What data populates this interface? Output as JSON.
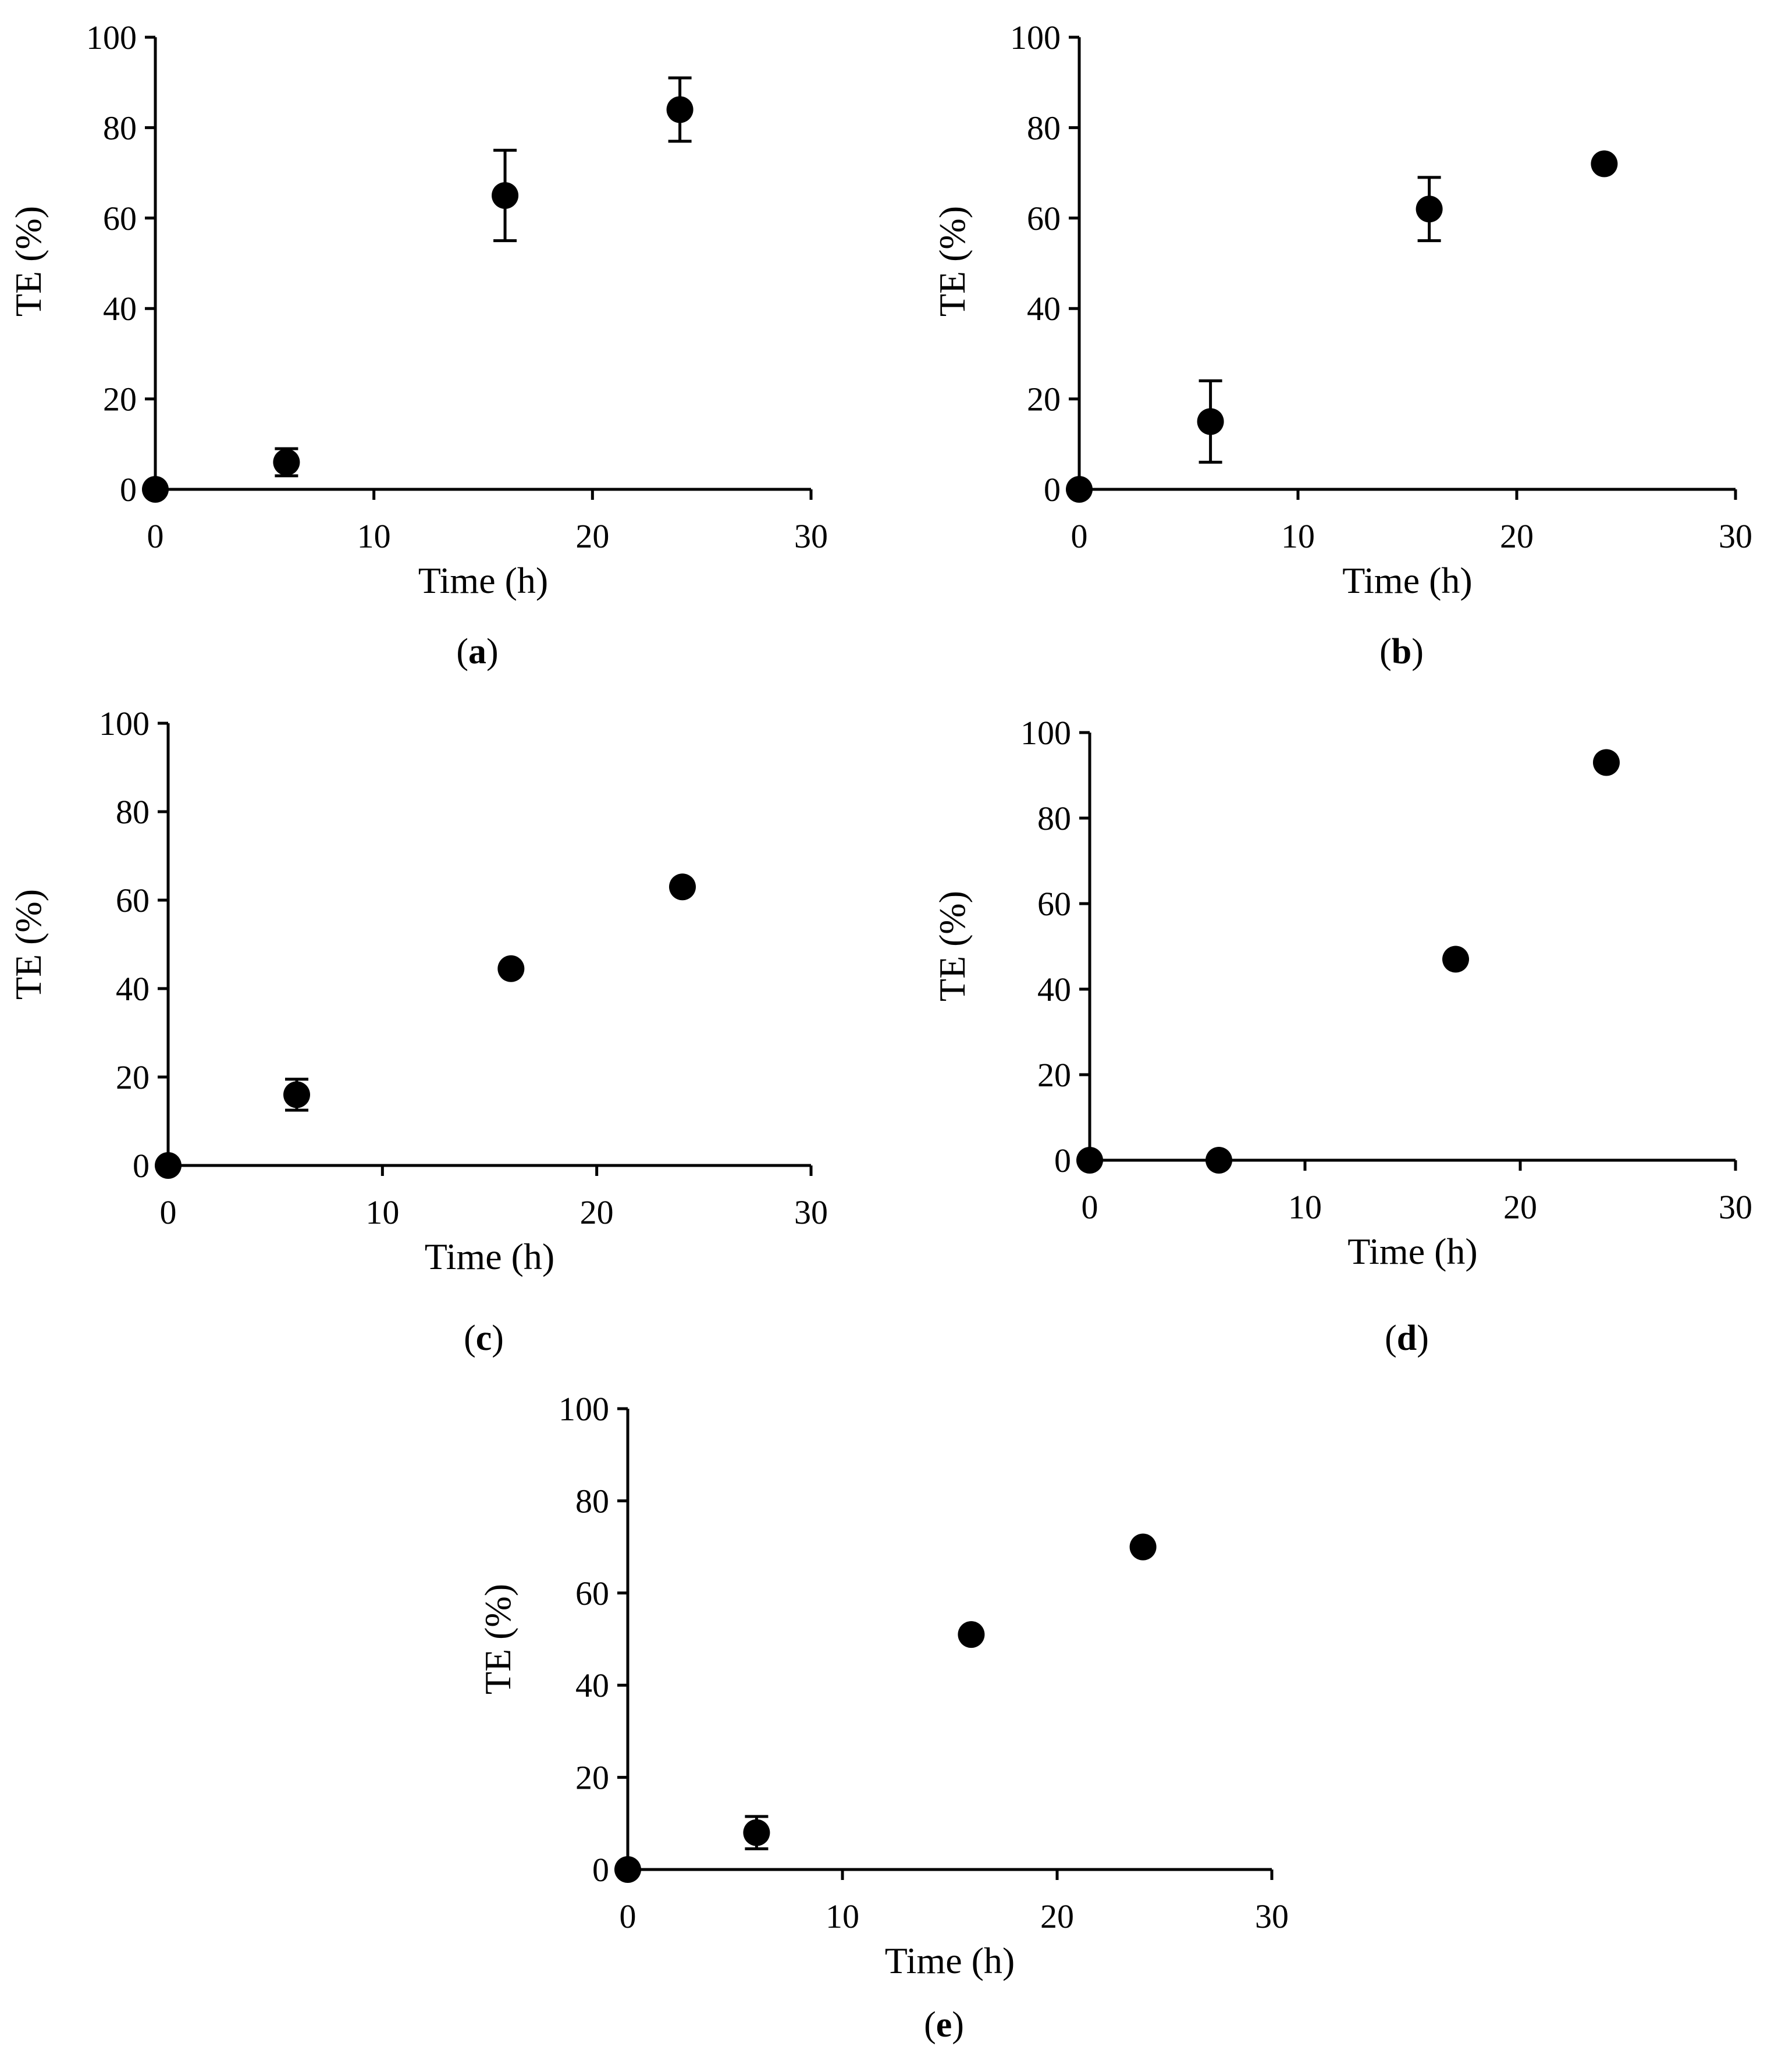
{
  "colors": {
    "marker": "#000000",
    "axis": "#000000",
    "errorbar": "#000000"
  },
  "chart_data": [
    {
      "type": "scatter",
      "panel_label": "a",
      "xlabel": "Time (h)",
      "ylabel": "TE (%)",
      "xlim": [
        0,
        30
      ],
      "ylim": [
        0,
        100
      ],
      "x_ticks": [
        "0",
        "10",
        "20",
        "30"
      ],
      "y_ticks": [
        "0",
        "20",
        "40",
        "60",
        "80",
        "100"
      ],
      "grid": false,
      "points": [
        {
          "x": 0,
          "y": 0,
          "err": 0
        },
        {
          "x": 6,
          "y": 6,
          "err": 3
        },
        {
          "x": 16,
          "y": 65,
          "err": 10
        },
        {
          "x": 24,
          "y": 84,
          "err": 7
        }
      ]
    },
    {
      "type": "scatter",
      "panel_label": "b",
      "xlabel": "Time (h)",
      "ylabel": "TE (%)",
      "xlim": [
        0,
        30
      ],
      "ylim": [
        0,
        100
      ],
      "x_ticks": [
        "0",
        "10",
        "20",
        "30"
      ],
      "y_ticks": [
        "0",
        "20",
        "40",
        "60",
        "80",
        "100"
      ],
      "grid": false,
      "points": [
        {
          "x": 0,
          "y": 0,
          "err": 0
        },
        {
          "x": 6,
          "y": 15,
          "err": 9
        },
        {
          "x": 16,
          "y": 62,
          "err": 7
        },
        {
          "x": 24,
          "y": 72,
          "err": 1
        }
      ]
    },
    {
      "type": "scatter",
      "panel_label": "c",
      "xlabel": "Time (h)",
      "ylabel": "TE (%)",
      "xlim": [
        0,
        30
      ],
      "ylim": [
        0,
        100
      ],
      "x_ticks": [
        "0",
        "10",
        "20",
        "30"
      ],
      "y_ticks": [
        "0",
        "20",
        "40",
        "60",
        "80",
        "100"
      ],
      "grid": false,
      "points": [
        {
          "x": 0,
          "y": 0,
          "err": 0
        },
        {
          "x": 6,
          "y": 16,
          "err": 3.5
        },
        {
          "x": 16,
          "y": 44.5,
          "err": 1
        },
        {
          "x": 24,
          "y": 63,
          "err": 1
        }
      ]
    },
    {
      "type": "scatter",
      "panel_label": "d",
      "xlabel": "Time (h)",
      "ylabel": "TE (%)",
      "xlim": [
        0,
        30
      ],
      "ylim": [
        0,
        100
      ],
      "x_ticks": [
        "0",
        "10",
        "20",
        "30"
      ],
      "y_ticks": [
        "0",
        "20",
        "40",
        "60",
        "80",
        "100"
      ],
      "grid": false,
      "points": [
        {
          "x": 0,
          "y": 0,
          "err": 0
        },
        {
          "x": 6,
          "y": 0,
          "err": 0
        },
        {
          "x": 17,
          "y": 47,
          "err": 0.5
        },
        {
          "x": 24,
          "y": 93,
          "err": 0.5
        }
      ]
    },
    {
      "type": "scatter",
      "panel_label": "e",
      "xlabel": "Time (h)",
      "ylabel": "TE (%)",
      "xlim": [
        0,
        30
      ],
      "ylim": [
        0,
        100
      ],
      "x_ticks": [
        "0",
        "10",
        "20",
        "30"
      ],
      "y_ticks": [
        "0",
        "20",
        "40",
        "60",
        "80",
        "100"
      ],
      "grid": false,
      "points": [
        {
          "x": 0,
          "y": 0,
          "err": 0
        },
        {
          "x": 6,
          "y": 8,
          "err": 3.5
        },
        {
          "x": 16,
          "y": 51,
          "err": 0.5
        },
        {
          "x": 24,
          "y": 70,
          "err": 0.5
        }
      ]
    }
  ]
}
